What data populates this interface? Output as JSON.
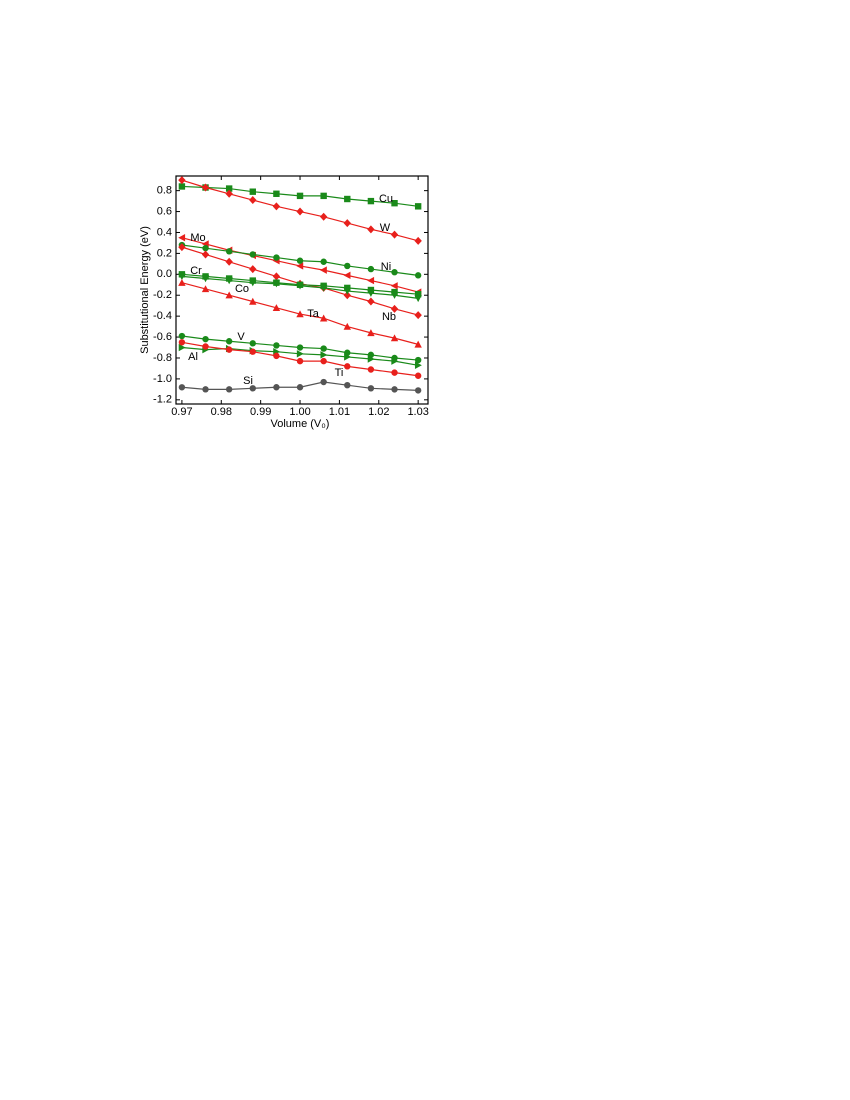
{
  "chart_data": {
    "type": "line",
    "x_label": "Volume (V₀)",
    "y_label": "Substitutional Energy (eV)",
    "x": [
      0.97,
      0.976,
      0.982,
      0.988,
      0.994,
      1.0,
      1.006,
      1.012,
      1.018,
      1.024,
      1.03
    ],
    "xlim": [
      0.9685,
      1.0325
    ],
    "ylim": [
      -1.24,
      0.94
    ],
    "xticks": [
      0.97,
      0.98,
      0.99,
      {
        "value": 1,
        "label": "1.00"
      },
      1.01,
      1.02,
      1.03
    ],
    "yticks": [
      -1.2,
      {
        "value": -1,
        "label": "-1.0"
      },
      -0.8,
      -0.6,
      -0.4,
      -0.2,
      {
        "value": 0,
        "label": "0.0"
      },
      0.2,
      0.4,
      0.6,
      0.8
    ],
    "series": [
      {
        "name": "Cu",
        "color": "#1a8a1a",
        "marker": "square",
        "values": [
          0.84,
          0.83,
          0.82,
          0.79,
          0.77,
          0.75,
          0.75,
          0.72,
          0.7,
          0.68,
          0.65
        ]
      },
      {
        "name": "W",
        "color": "#e8201c",
        "marker": "diamond",
        "values": [
          0.9,
          0.83,
          0.77,
          0.71,
          0.65,
          0.6,
          0.55,
          0.49,
          0.43,
          0.38,
          0.32
        ]
      },
      {
        "name": "Mo",
        "color": "#e8201c",
        "marker": "triangle-left",
        "values": [
          0.35,
          0.29,
          0.23,
          0.18,
          0.13,
          0.08,
          0.04,
          -0.01,
          -0.06,
          -0.11,
          -0.17
        ]
      },
      {
        "name": "Ni",
        "color": "#1a8a1a",
        "marker": "circle",
        "values": [
          0.28,
          0.25,
          0.22,
          0.19,
          0.16,
          0.13,
          0.12,
          0.08,
          0.05,
          0.02,
          -0.01
        ]
      },
      {
        "name": "Nb",
        "color": "#e8201c",
        "marker": "diamond",
        "values": [
          0.26,
          0.19,
          0.12,
          0.05,
          -0.02,
          -0.09,
          -0.13,
          -0.2,
          -0.26,
          -0.33,
          -0.39
        ]
      },
      {
        "name": "Cr",
        "color": "#1a8a1a",
        "marker": "square",
        "values": [
          0.0,
          -0.02,
          -0.04,
          -0.06,
          -0.08,
          -0.1,
          -0.11,
          -0.13,
          -0.15,
          -0.17,
          -0.19
        ]
      },
      {
        "name": "Co",
        "color": "#1a8a1a",
        "marker": "triangle-down",
        "values": [
          -0.02,
          -0.04,
          -0.06,
          -0.08,
          -0.09,
          -0.11,
          -0.13,
          -0.16,
          -0.18,
          -0.2,
          -0.23
        ]
      },
      {
        "name": "Ta",
        "color": "#e8201c",
        "marker": "triangle-up",
        "values": [
          -0.08,
          -0.14,
          -0.2,
          -0.26,
          -0.32,
          -0.38,
          -0.42,
          -0.5,
          -0.56,
          -0.61,
          -0.67
        ]
      },
      {
        "name": "V",
        "color": "#1a8a1a",
        "marker": "circle",
        "values": [
          -0.59,
          -0.62,
          -0.64,
          -0.66,
          -0.68,
          -0.7,
          -0.71,
          -0.75,
          -0.77,
          -0.8,
          -0.82
        ]
      },
      {
        "name": "Al",
        "color": "#1a8a1a",
        "marker": "triangle-right",
        "values": [
          -0.7,
          -0.72,
          -0.71,
          -0.73,
          -0.74,
          -0.76,
          -0.77,
          -0.79,
          -0.81,
          -0.83,
          -0.87
        ]
      },
      {
        "name": "Ti",
        "color": "#e8201c",
        "marker": "circle",
        "values": [
          -0.65,
          -0.69,
          -0.72,
          -0.74,
          -0.78,
          -0.83,
          -0.83,
          -0.88,
          -0.91,
          -0.94,
          -0.97
        ]
      },
      {
        "name": "Si",
        "color": "#555555",
        "marker": "circle",
        "values": [
          -1.08,
          -1.1,
          -1.1,
          -1.09,
          -1.08,
          -1.08,
          -1.03,
          -1.06,
          -1.09,
          -1.1,
          -1.11
        ]
      }
    ]
  }
}
